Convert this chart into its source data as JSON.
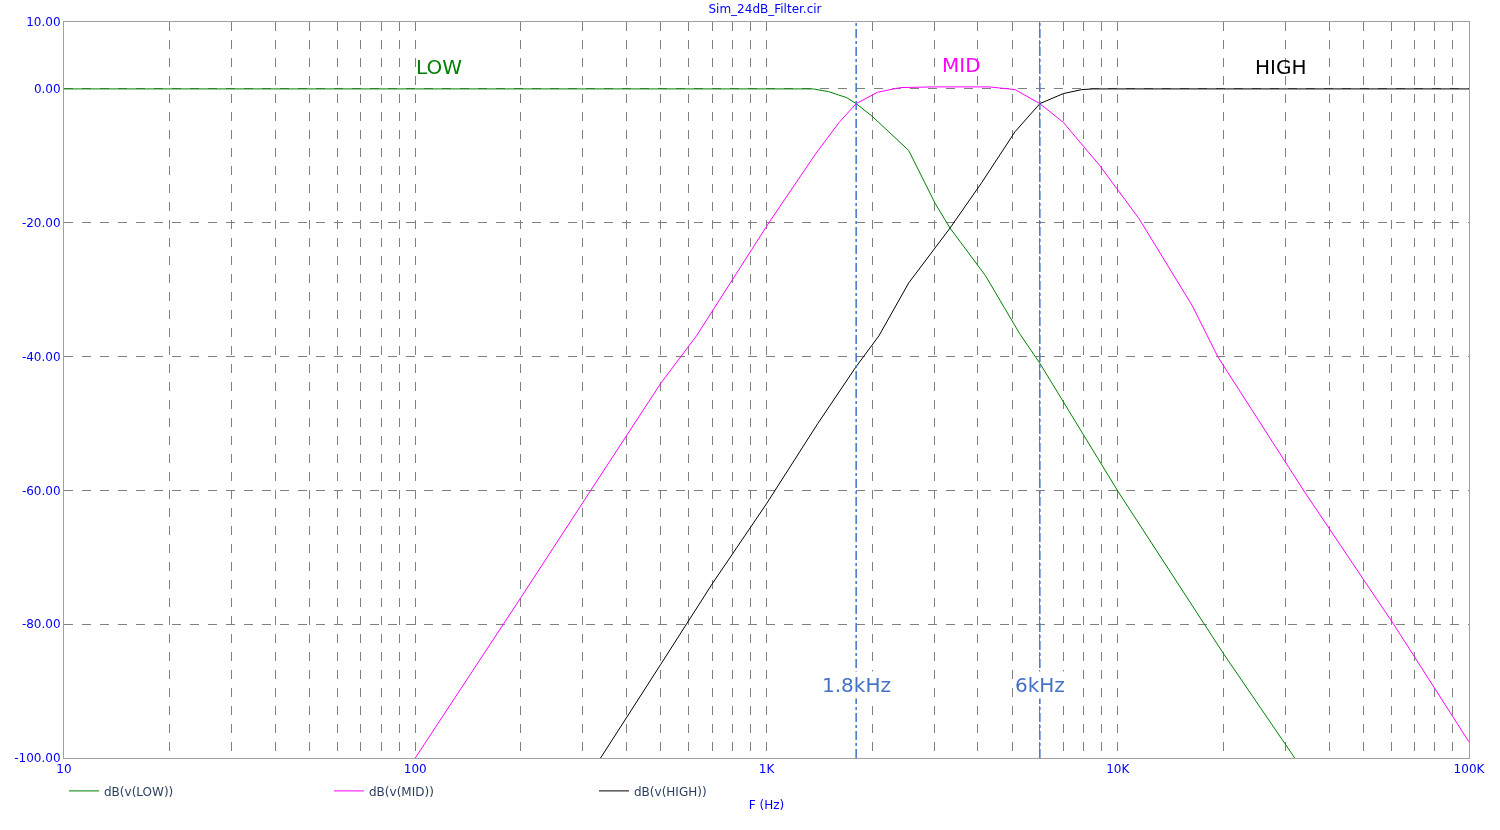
{
  "chart_data": {
    "type": "line",
    "title": "Sim_24dB_Filter.cir",
    "xlabel": "F (Hz)",
    "log": "x",
    "grid": true,
    "legend": "bottom left",
    "marker": "none",
    "line_style": "solid",
    "xlim": [
      10,
      100000
    ],
    "xticks": [
      10,
      100,
      {
        "value": 1000,
        "label": "1K"
      },
      {
        "value": 10000,
        "label": "10K"
      },
      {
        "value": 100000,
        "label": "100K"
      }
    ],
    "ylim": [
      -100,
      10
    ],
    "yticks": [
      {
        "value": 10,
        "label": "10.00"
      },
      {
        "value": 0,
        "label": "0.00"
      },
      {
        "value": -20,
        "label": "-20.00"
      },
      {
        "value": -40,
        "label": "-40.00"
      },
      {
        "value": -60,
        "label": "-60.00"
      },
      {
        "value": -80,
        "label": "-80.00"
      },
      {
        "value": -100,
        "label": "-100.00"
      }
    ],
    "series": [
      {
        "name": "dB(v(LOW))",
        "color": "#008000",
        "x": [
          10,
          100,
          1000,
          1360,
          1500,
          1690,
          1800,
          2000,
          2540,
          3020,
          3330,
          4200,
          5260,
          6000,
          10000,
          20000,
          31900
        ],
        "values": [
          0,
          0,
          0,
          0,
          -0.4,
          -1.3,
          -2.2,
          -4.1,
          -9.2,
          -17.1,
          -20.8,
          -27.9,
          -36.6,
          -41,
          -60.1,
          -84.4,
          -100
        ]
      },
      {
        "name": "dB(v(MID))",
        "color": "#ff00ff",
        "x": [
          100,
          200,
          316,
          500,
          632,
          1010,
          1380,
          1610,
          1800,
          2070,
          2410,
          3000,
          4300,
          5100,
          6000,
          7000,
          8900,
          11500,
          16300,
          19300,
          33900,
          61000,
          100000
        ],
        "values": [
          -100,
          -76,
          -60,
          -44,
          -36.9,
          -20.2,
          -9.7,
          -5,
          -2.2,
          -0.5,
          0.2,
          0.3,
          0.3,
          -0.1,
          -2.2,
          -5,
          -11.5,
          -19.4,
          -32.4,
          -40.1,
          -60.1,
          -80,
          -97.6
        ]
      },
      {
        "name": "dB(v(HIGH))",
        "color": "#000000",
        "x": [
          337,
          500,
          700,
          1000,
          1400,
          1800,
          2090,
          2540,
          3330,
          4100,
          5100,
          6000,
          7000,
          7900,
          8500,
          20000,
          100000
        ],
        "values": [
          -100,
          -86,
          -74,
          -62,
          -50,
          -41.5,
          -36.9,
          -29,
          -20.8,
          -14,
          -6.4,
          -2.2,
          -0.7,
          -0.1,
          0,
          0,
          0
        ]
      }
    ],
    "annotations": [
      "LOW",
      "MID",
      "HIGH"
    ],
    "ref_lines": [
      {
        "axis": "x",
        "value": 1800,
        "label": "1.8kHz",
        "color": "#4472c4",
        "line_style": "dashed"
      },
      {
        "axis": "x",
        "value": 6000,
        "label": "6kHz",
        "color": "#4472c4",
        "line_style": "dashed"
      }
    ]
  }
}
